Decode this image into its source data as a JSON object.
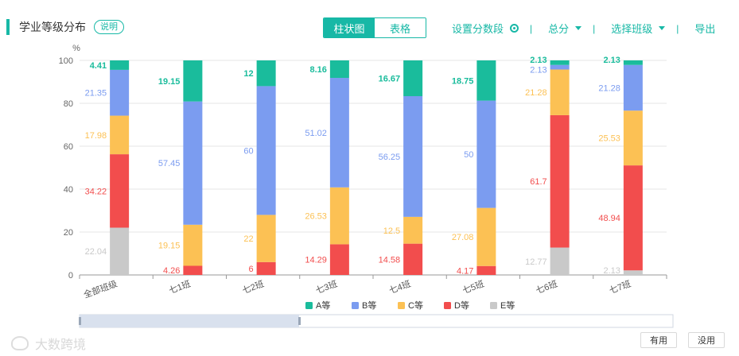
{
  "header": {
    "title": "学业等级分布",
    "help_label": "说明",
    "view_toggle": [
      "柱状图",
      "表格"
    ],
    "active_view": "柱状图"
  },
  "toolbar": {
    "set_segments": "设置分数段",
    "total_score": "总分",
    "select_class": "选择班级",
    "export": "导出",
    "separator": "|"
  },
  "footer": {
    "use_label": "有用",
    "no_use_label": "没用"
  },
  "watermark": {
    "text": "大数跨境"
  },
  "colors": {
    "accent": "#17b8a6",
    "A": "#1abc9c",
    "B": "#7b9cf0",
    "C": "#fcc154",
    "D": "#f24d4d",
    "E": "#c9c9c9",
    "grid": "#e6e6e6",
    "axis": "#999999"
  },
  "chart_data": {
    "type": "bar",
    "stacked": true,
    "ylabel": "%",
    "ylim": [
      0,
      100
    ],
    "yticks": [
      0,
      20,
      40,
      60,
      80,
      100
    ],
    "categories": [
      "全部班级",
      "七1班",
      "七2班",
      "七3班",
      "七4班",
      "七5班",
      "七6班",
      "七7班"
    ],
    "series": [
      {
        "name": "A等",
        "color_key": "A",
        "values": [
          4.41,
          19.15,
          12,
          8.16,
          16.67,
          18.75,
          2.13,
          2.13
        ],
        "labels": [
          "4.41",
          "19.15",
          "12",
          "8.16",
          "16.67",
          "18.75",
          "2.13",
          "2.13"
        ]
      },
      {
        "name": "B等",
        "color_key": "B",
        "values": [
          21.35,
          57.45,
          60,
          51.02,
          56.25,
          50,
          2.13,
          21.28
        ],
        "labels": [
          "21.35",
          "57.45",
          "60",
          "51.02",
          "56.25",
          "50",
          "2.13",
          "21.28"
        ]
      },
      {
        "name": "C等",
        "color_key": "C",
        "values": [
          17.98,
          19.15,
          22,
          26.53,
          12.5,
          27.08,
          21.28,
          25.53
        ],
        "labels": [
          "17.98",
          "19.15",
          "22",
          "26.53",
          "12.5",
          "27.08",
          "21.28",
          "25.53"
        ]
      },
      {
        "name": "D等",
        "color_key": "D",
        "values": [
          34.22,
          4.26,
          6,
          14.29,
          14.58,
          4.17,
          61.7,
          48.94
        ],
        "labels": [
          "34.22",
          "4.26",
          "6",
          "14.29",
          "14.58",
          "4.17",
          "61.7",
          "48.94"
        ]
      },
      {
        "name": "E等",
        "color_key": "E",
        "values": [
          22.04,
          0,
          0,
          0,
          0,
          0,
          12.77,
          2.13
        ],
        "labels": [
          "22.04",
          "",
          "",
          "",
          "",
          "",
          "12.77",
          "2.13"
        ]
      }
    ],
    "legend_position": "bottom-center",
    "grid": true,
    "data_zoom": {
      "start": 0,
      "end": 0.37
    }
  }
}
